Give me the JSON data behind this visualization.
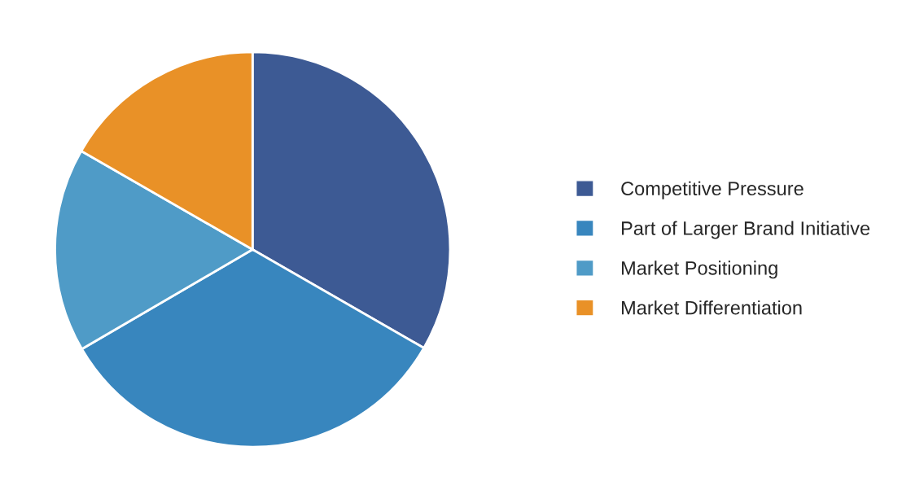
{
  "chart_data": {
    "type": "pie",
    "categories": [
      "Competitive Pressure",
      "Part of Larger Brand Initiative",
      "Market Positioning",
      "Market Differentiation"
    ],
    "values": [
      33.3,
      33.3,
      16.7,
      16.7
    ],
    "colors": [
      "#3d5a94",
      "#3886be",
      "#4f9bc7",
      "#e99127"
    ],
    "legend": "right"
  }
}
